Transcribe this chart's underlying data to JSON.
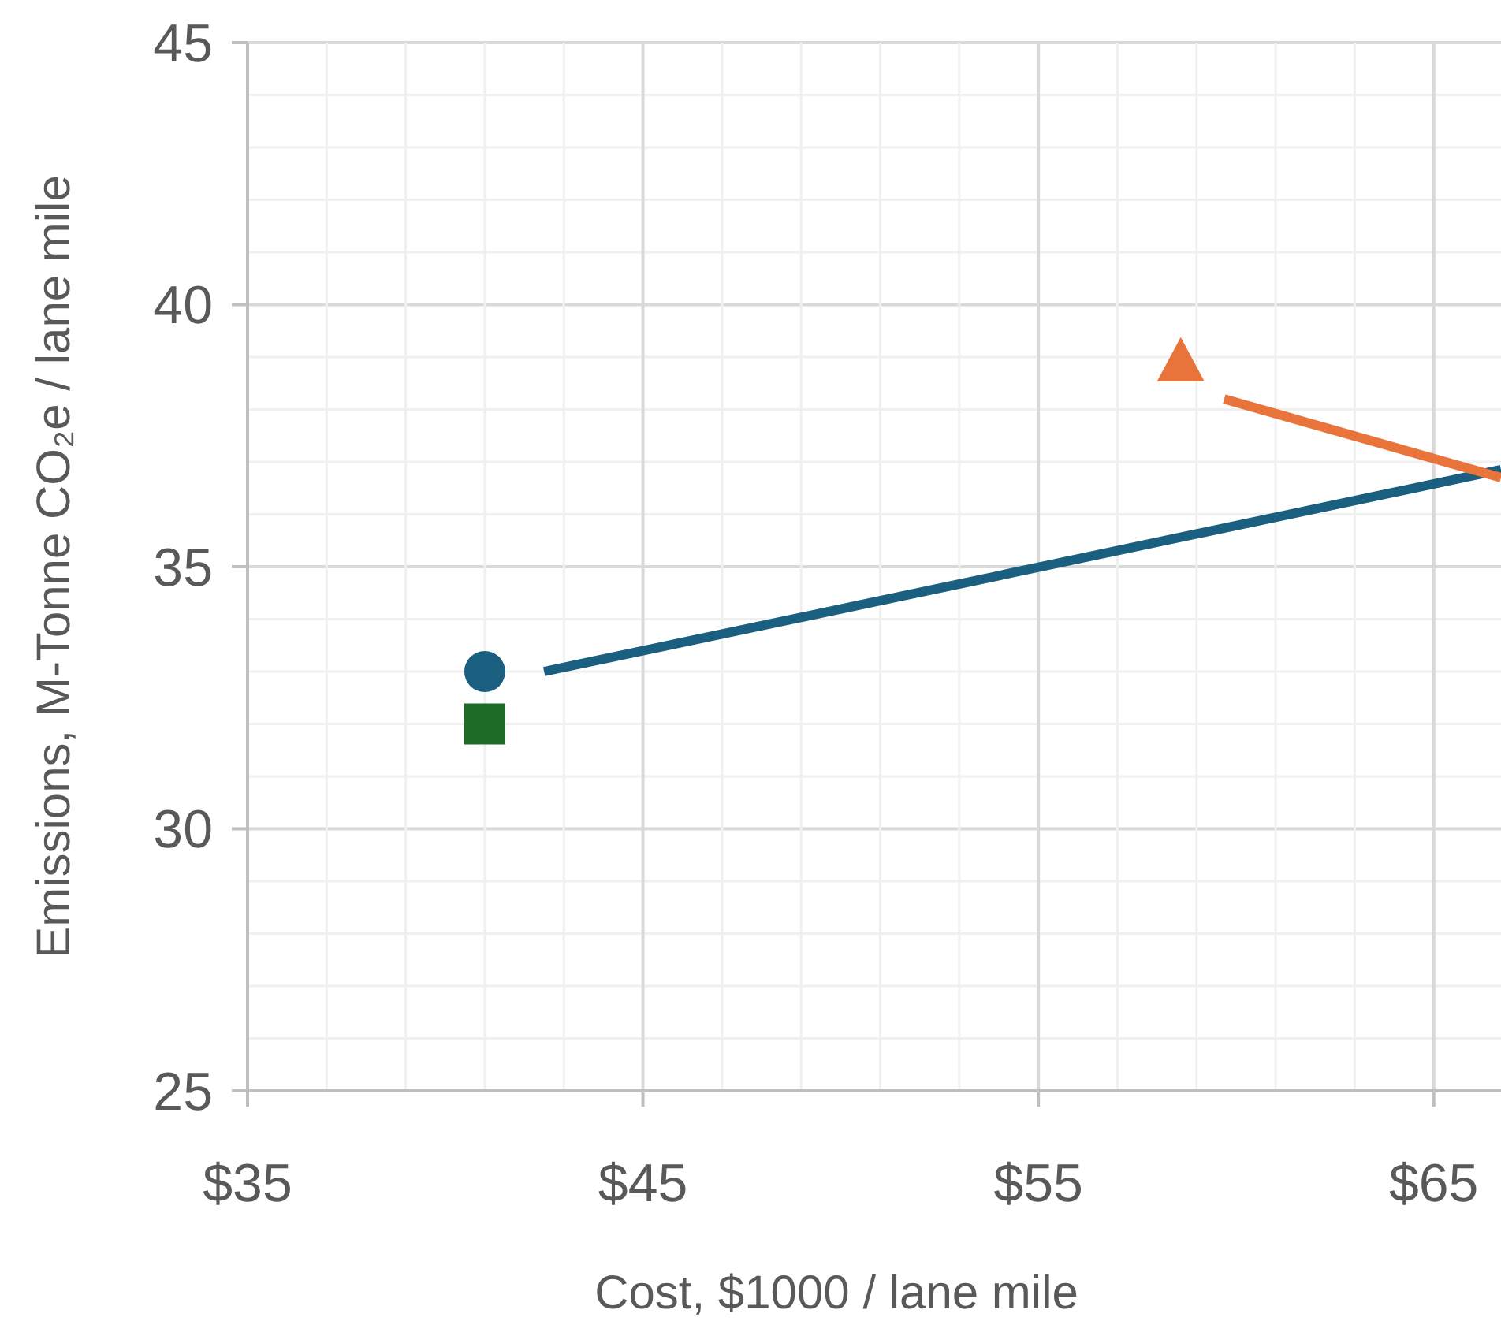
{
  "chart_data": {
    "type": "scatter",
    "xlabel": "Cost, $1000 / lane mile",
    "ylabel": "Emissions, M-Tonne CO₂e / lane mile",
    "xlim": [
      35,
      66.7
    ],
    "ylim": [
      25,
      45
    ],
    "xticks": [
      {
        "value": 35,
        "label": "$35"
      },
      {
        "value": 37,
        "label": null
      },
      {
        "value": 39,
        "label": null
      },
      {
        "value": 41,
        "label": null
      },
      {
        "value": 43,
        "label": null
      },
      {
        "value": 45,
        "label": "$45"
      },
      {
        "value": 47,
        "label": null
      },
      {
        "value": 49,
        "label": null
      },
      {
        "value": 51,
        "label": null
      },
      {
        "value": 53,
        "label": null
      },
      {
        "value": 55,
        "label": "$55"
      },
      {
        "value": 57,
        "label": null
      },
      {
        "value": 59,
        "label": null
      },
      {
        "value": 61,
        "label": null
      },
      {
        "value": 63,
        "label": null
      },
      {
        "value": 65,
        "label": "$65"
      }
    ],
    "yticks": [
      25,
      {
        "value": 26,
        "label": null
      },
      {
        "value": 27,
        "label": null
      },
      {
        "value": 28,
        "label": null
      },
      {
        "value": 29,
        "label": null
      },
      30,
      {
        "value": 31,
        "label": null
      },
      {
        "value": 32,
        "label": null
      },
      {
        "value": 33,
        "label": null
      },
      {
        "value": 34,
        "label": null
      },
      35,
      {
        "value": 36,
        "label": null
      },
      {
        "value": 37,
        "label": null
      },
      {
        "value": 38,
        "label": null
      },
      {
        "value": 39,
        "label": null
      },
      40,
      {
        "value": 41,
        "label": null
      },
      {
        "value": 42,
        "label": null
      },
      {
        "value": 43,
        "label": null
      },
      {
        "value": 44,
        "label": null
      },
      45
    ],
    "grid": true,
    "series": [
      {
        "type": "line",
        "color": "#1a5e80",
        "x": [
          42.5,
          66.7
        ],
        "values": [
          33.0,
          36.85
        ],
        "marker": "none",
        "line_style": "solid"
      },
      {
        "type": "line",
        "color": "#e8743b",
        "x": [
          59.7,
          66.7
        ],
        "values": [
          38.2,
          36.7
        ],
        "marker": "none",
        "line_style": "solid"
      },
      {
        "color": "#1a5e80",
        "x": [
          41
        ],
        "values": [
          33.0
        ],
        "marker": "circle"
      },
      {
        "color": "#1e6b28",
        "x": [
          41
        ],
        "values": [
          32.0
        ],
        "marker": "square"
      },
      {
        "color": "#e8743b",
        "x": [
          58.6
        ],
        "values": [
          38.9
        ],
        "marker": "triangle"
      }
    ]
  }
}
